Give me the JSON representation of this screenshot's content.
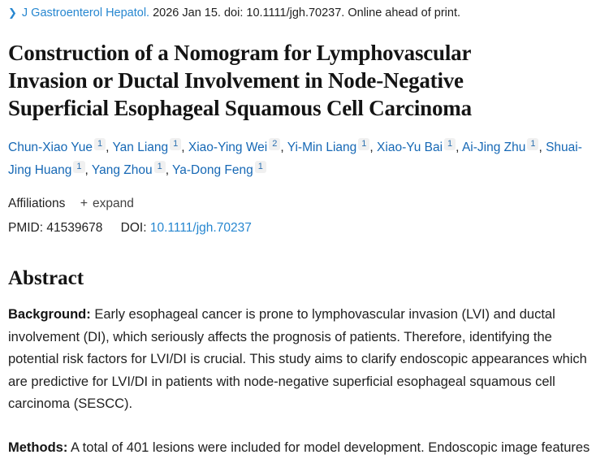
{
  "citation": {
    "chevron": "❯",
    "journal": "J Gastroenterol Hepatol.",
    "rest": "2026 Jan 15. doi: 10.1111/jgh.70237. Online ahead of print."
  },
  "title_lines": [
    "Construction of a Nomogram for Lymphovascular",
    "Invasion or Ductal Involvement in Node-Negative",
    "Superficial Esophageal Squamous Cell Carcinoma"
  ],
  "authors": [
    {
      "name": "Chun-Xiao Yue",
      "sup": "1"
    },
    {
      "name": "Yan Liang",
      "sup": "1"
    },
    {
      "name": "Xiao-Ying Wei",
      "sup": "2"
    },
    {
      "name": "Yi-Min Liang",
      "sup": "1"
    },
    {
      "name": "Xiao-Yu Bai",
      "sup": "1"
    },
    {
      "name": "Ai-Jing Zhu",
      "sup": "1"
    },
    {
      "name": "Shuai-Jing Huang",
      "sup": "1"
    },
    {
      "name": "Yang Zhou",
      "sup": "1"
    },
    {
      "name": "Ya-Dong Feng",
      "sup": "1"
    }
  ],
  "affiliations": {
    "label": "Affiliations",
    "plus": "+",
    "expand_label": "expand"
  },
  "ids": {
    "pmid_label": "PMID:",
    "pmid_value": "41539678",
    "doi_label": "DOI:",
    "doi_value": "10.1111/jgh.70237"
  },
  "abstract": {
    "heading": "Abstract",
    "paragraphs": [
      {
        "label": "Background:",
        "text": "Early esophageal cancer is prone to lymphovascular invasion (LVI) and ductal involvement (DI), which seriously affects the prognosis of patients. Therefore, identifying the potential risk factors for LVI/DI is crucial. This study aims to clarify endoscopic appearances which are predictive for LVI/DI in patients with node-negative superficial esophageal squamous cell carcinoma (SESCC)."
      },
      {
        "label": "Methods:",
        "text": "A total of 401 lesions were included for model development. Endoscopic image features"
      }
    ]
  },
  "colors": {
    "link_blue": "#2787d0",
    "author_blue": "#1668b5",
    "text_dark": "#212121",
    "sup_box_bg": "#f0f0f0"
  }
}
